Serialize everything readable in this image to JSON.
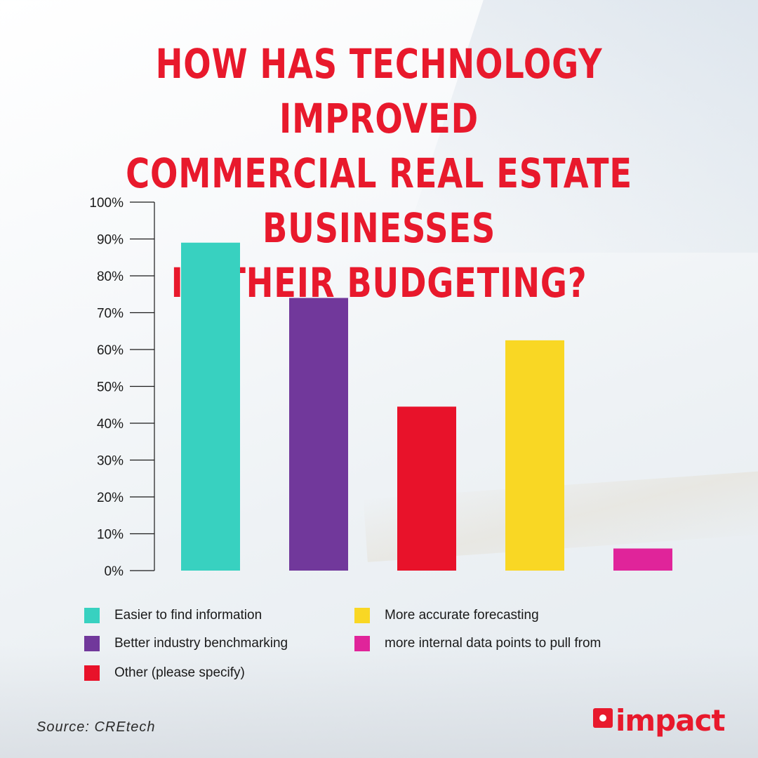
{
  "title_lines": [
    "HOW HAS TECHNOLOGY IMPROVED",
    "COMMERCIAL REAL ESTATE BUSINESSES",
    "IN THEIR BUDGETING?"
  ],
  "source": "Source: CREtech",
  "logo": {
    "text": "impact",
    "color": "#e8192c"
  },
  "colors": {
    "title": "#e8192c",
    "axis": "#1a1a1a"
  },
  "chart_data": {
    "type": "bar",
    "categories": [
      "Easier to find information",
      "Better industry benchmarking",
      "Other (please specify)",
      "More accurate forecasting",
      "more internal data points to pull from"
    ],
    "values": [
      89,
      74,
      44.5,
      62.5,
      6
    ],
    "colors": [
      "#38d1c0",
      "#71389b",
      "#e8122a",
      "#f9d724",
      "#e0249a"
    ],
    "yticks": [
      "100%",
      "90%",
      "80%",
      "70%",
      "60%",
      "50%",
      "40%",
      "30%",
      "20%",
      "10%",
      "0%"
    ],
    "ylim": [
      0,
      100
    ],
    "legend_placement": "bottom",
    "grid": false
  }
}
